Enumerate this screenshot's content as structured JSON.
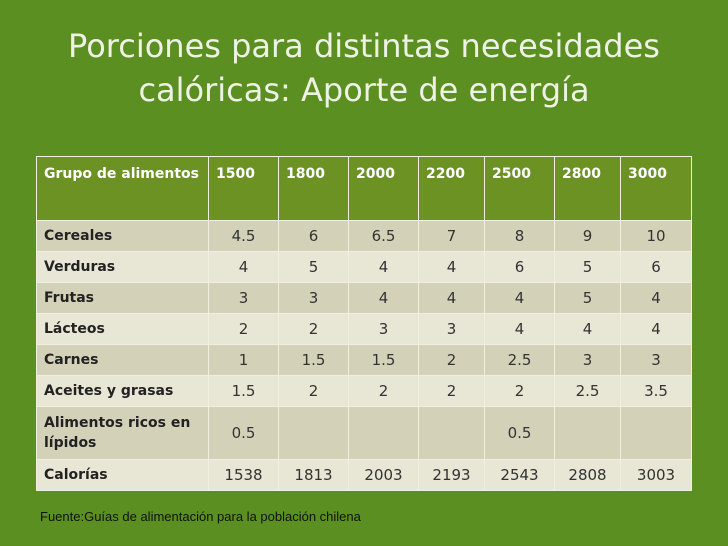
{
  "title": {
    "line1": "Porciones para distintas necesidades",
    "line2": "calóricas: Aporte de energía"
  },
  "table": {
    "header": [
      "Grupo de alimentos",
      "1500",
      "1800",
      "2000",
      "2200",
      "2500",
      "2800",
      "3000"
    ],
    "rows": [
      {
        "label": "Cereales",
        "values": [
          "4.5",
          "6",
          "6.5",
          "7",
          "8",
          "9",
          "10"
        ]
      },
      {
        "label": "Verduras",
        "values": [
          "4",
          "5",
          "4",
          "4",
          "6",
          "5",
          "6"
        ]
      },
      {
        "label": "Frutas",
        "values": [
          "3",
          "3",
          "4",
          "4",
          "4",
          "5",
          "4"
        ]
      },
      {
        "label": "Lácteos",
        "values": [
          "2",
          "2",
          "3",
          "3",
          "4",
          "4",
          "4"
        ]
      },
      {
        "label": "Carnes",
        "values": [
          "1",
          "1.5",
          "1.5",
          "2",
          "2.5",
          "3",
          "3"
        ]
      },
      {
        "label": "Aceites y grasas",
        "values": [
          "1.5",
          "2",
          "2",
          "2",
          "2",
          "2.5",
          "3.5"
        ]
      },
      {
        "label": "Alimentos ricos en lípidos",
        "values": [
          "0.5",
          "",
          "",
          "",
          "0.5",
          "",
          ""
        ]
      },
      {
        "label": "Calorías",
        "values": [
          "1538",
          "1813",
          "2003",
          "2193",
          "2543",
          "2808",
          "3003"
        ]
      }
    ]
  },
  "source": "Fuente:Guías de alimentación para la población chilena",
  "colors": {
    "background": "#5b8f22",
    "header": "#6b9222",
    "row_dark": "#d3d2b9",
    "row_light": "#e8e6d4",
    "title_text": "#eef2e4"
  }
}
